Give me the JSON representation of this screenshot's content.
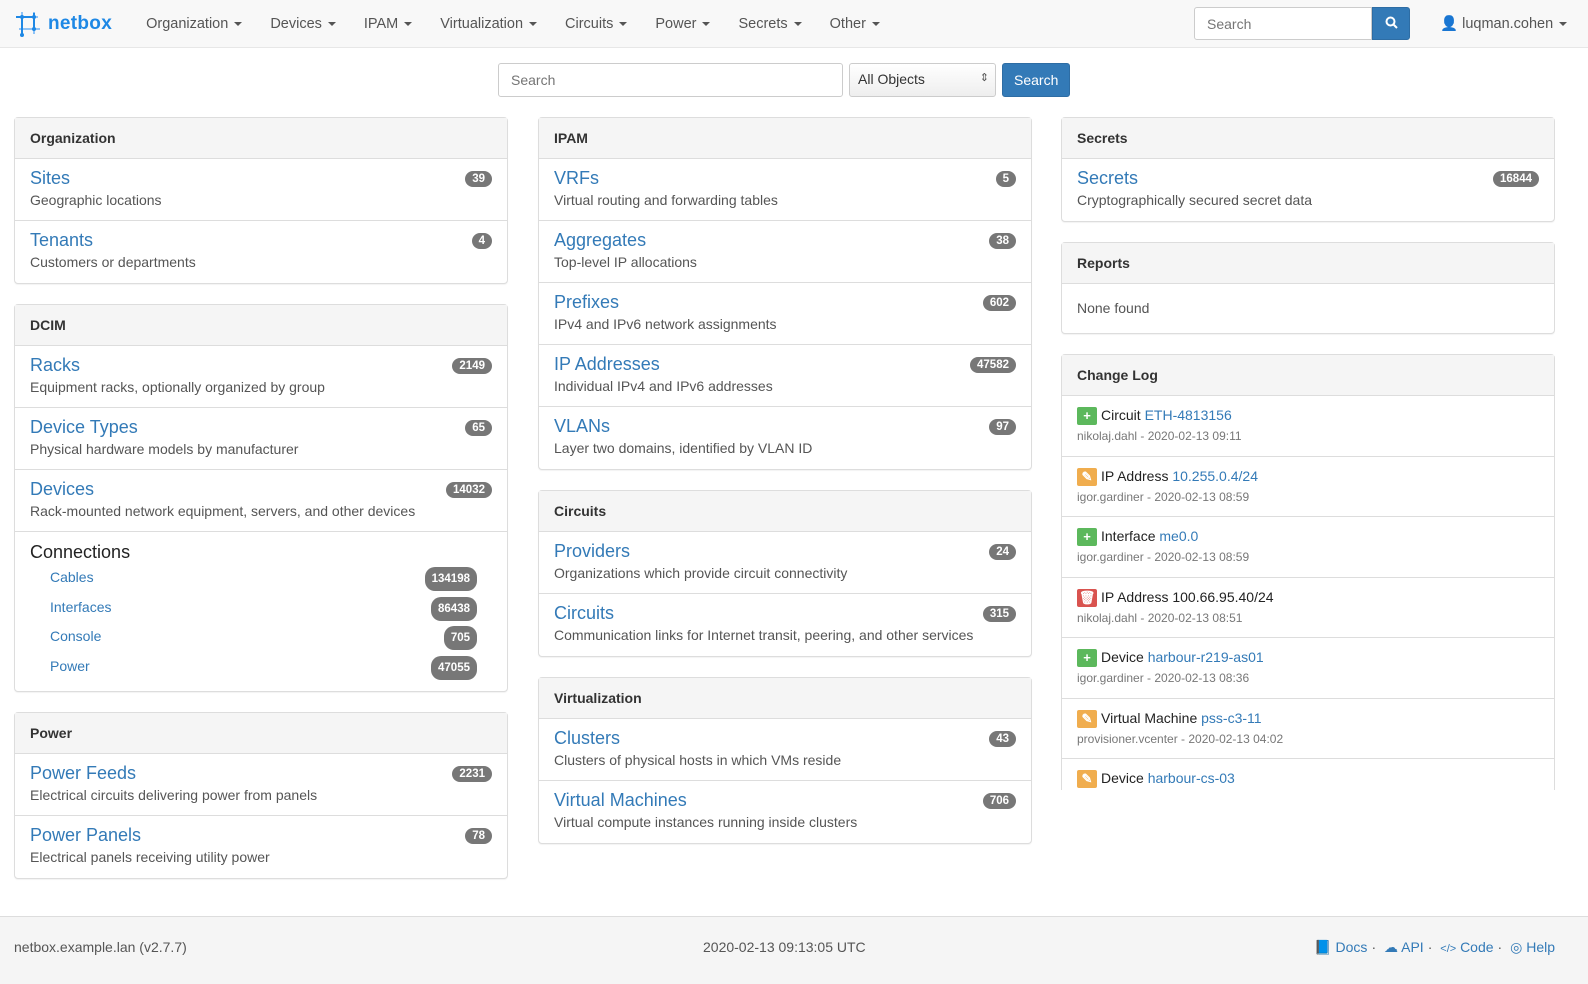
{
  "navbar": {
    "brand": "netbox",
    "menus": [
      "Organization",
      "Devices",
      "IPAM",
      "Virtualization",
      "Circuits",
      "Power",
      "Secrets",
      "Other"
    ],
    "search_placeholder": "Search",
    "user": "luqman.cohen"
  },
  "search": {
    "placeholder": "Search",
    "scope": "All Objects",
    "button": "Search"
  },
  "columns": [
    [
      {
        "title": "Organization",
        "rows": [
          {
            "title": "Sites",
            "desc": "Geographic locations",
            "count": "39"
          },
          {
            "title": "Tenants",
            "desc": "Customers or departments",
            "count": "4"
          }
        ]
      },
      {
        "title": "DCIM",
        "rows": [
          {
            "title": "Racks",
            "desc": "Equipment racks, optionally organized by group",
            "count": "2149"
          },
          {
            "title": "Device Types",
            "desc": "Physical hardware models by manufacturer",
            "count": "65"
          },
          {
            "title": "Devices",
            "desc": "Rack-mounted network equipment, servers, and other devices",
            "count": "14032"
          }
        ],
        "connections": {
          "title": "Connections",
          "items": [
            {
              "label": "Cables",
              "count": "134198"
            },
            {
              "label": "Interfaces",
              "count": "86438"
            },
            {
              "label": "Console",
              "count": "705"
            },
            {
              "label": "Power",
              "count": "47055"
            }
          ]
        }
      },
      {
        "title": "Power",
        "rows": [
          {
            "title": "Power Feeds",
            "desc": "Electrical circuits delivering power from panels",
            "count": "2231"
          },
          {
            "title": "Power Panels",
            "desc": "Electrical panels receiving utility power",
            "count": "78"
          }
        ]
      }
    ],
    [
      {
        "title": "IPAM",
        "rows": [
          {
            "title": "VRFs",
            "desc": "Virtual routing and forwarding tables",
            "count": "5"
          },
          {
            "title": "Aggregates",
            "desc": "Top-level IP allocations",
            "count": "38"
          },
          {
            "title": "Prefixes",
            "desc": "IPv4 and IPv6 network assignments",
            "count": "602"
          },
          {
            "title": "IP Addresses",
            "desc": "Individual IPv4 and IPv6 addresses",
            "count": "47582"
          },
          {
            "title": "VLANs",
            "desc": "Layer two domains, identified by VLAN ID",
            "count": "97"
          }
        ]
      },
      {
        "title": "Circuits",
        "rows": [
          {
            "title": "Providers",
            "desc": "Organizations which provide circuit connectivity",
            "count": "24"
          },
          {
            "title": "Circuits",
            "desc": "Communication links for Internet transit, peering, and other services",
            "count": "315"
          }
        ]
      },
      {
        "title": "Virtualization",
        "rows": [
          {
            "title": "Clusters",
            "desc": "Clusters of physical hosts in which VMs reside",
            "count": "43"
          },
          {
            "title": "Virtual Machines",
            "desc": "Virtual compute instances running inside clusters",
            "count": "706"
          }
        ]
      }
    ],
    [
      {
        "title": "Secrets",
        "rows": [
          {
            "title": "Secrets",
            "desc": "Cryptographically secured secret data",
            "count": "16844"
          }
        ]
      },
      {
        "title": "Reports",
        "none": "None found"
      },
      {
        "title": "Change Log",
        "changes": [
          {
            "action": "create",
            "type": "Circuit",
            "object": "ETH-4813156",
            "linked": true,
            "meta": "nikolaj.dahl - 2020-02-13 09:11"
          },
          {
            "action": "update",
            "type": "IP Address",
            "object": "10.255.0.4/24",
            "linked": true,
            "meta": "igor.gardiner - 2020-02-13 08:59"
          },
          {
            "action": "create",
            "type": "Interface",
            "object": "me0.0",
            "linked": true,
            "meta": "igor.gardiner - 2020-02-13 08:59"
          },
          {
            "action": "delete",
            "type": "IP Address",
            "object": "100.66.95.40/24",
            "linked": false,
            "meta": "nikolaj.dahl - 2020-02-13 08:51"
          },
          {
            "action": "create",
            "type": "Device",
            "object": "harbour-r219-as01",
            "linked": true,
            "meta": "igor.gardiner - 2020-02-13 08:36"
          },
          {
            "action": "update",
            "type": "Virtual Machine",
            "object": "pss-c3-11",
            "linked": true,
            "meta": "provisioner.vcenter - 2020-02-13 04:02"
          },
          {
            "action": "update",
            "type": "Device",
            "object": "harbour-cs-03",
            "linked": true,
            "meta": ""
          }
        ]
      }
    ]
  ],
  "action_colors": {
    "create": "#5cb85c",
    "update": "#f0ad4e",
    "delete": "#d9534f"
  },
  "footer": {
    "host": "netbox.example.lan (v2.7.7)",
    "time": "2020-02-13 09:13:05 UTC",
    "links": [
      "Docs",
      "API",
      "Code",
      "Help"
    ]
  }
}
